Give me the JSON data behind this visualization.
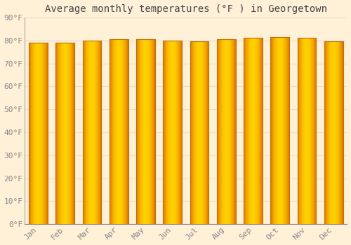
{
  "title": "Average monthly temperatures (°F ) in Georgetown",
  "months": [
    "Jan",
    "Feb",
    "Mar",
    "Apr",
    "May",
    "Jun",
    "Jul",
    "Aug",
    "Sep",
    "Oct",
    "Nov",
    "Dec"
  ],
  "temperatures": [
    79,
    79,
    80,
    80.5,
    80.5,
    80,
    79.5,
    80.5,
    81,
    81.5,
    81,
    79.5
  ],
  "ylim": [
    0,
    90
  ],
  "yticks": [
    0,
    10,
    20,
    30,
    40,
    50,
    60,
    70,
    80,
    90
  ],
  "ytick_labels": [
    "0°F",
    "10°F",
    "20°F",
    "30°F",
    "40°F",
    "50°F",
    "60°F",
    "70°F",
    "80°F",
    "90°F"
  ],
  "bar_color_edge": "#E07800",
  "bar_color_center": "#FFD000",
  "bar_edge_color": "#C07000",
  "background_color": "#FFF0D8",
  "plot_bg_color": "#FFF0D8",
  "grid_color": "#E8DDD0",
  "title_fontsize": 10,
  "tick_fontsize": 8,
  "title_color": "#444444",
  "tick_color": "#888888",
  "font_family": "monospace",
  "bar_width": 0.7
}
